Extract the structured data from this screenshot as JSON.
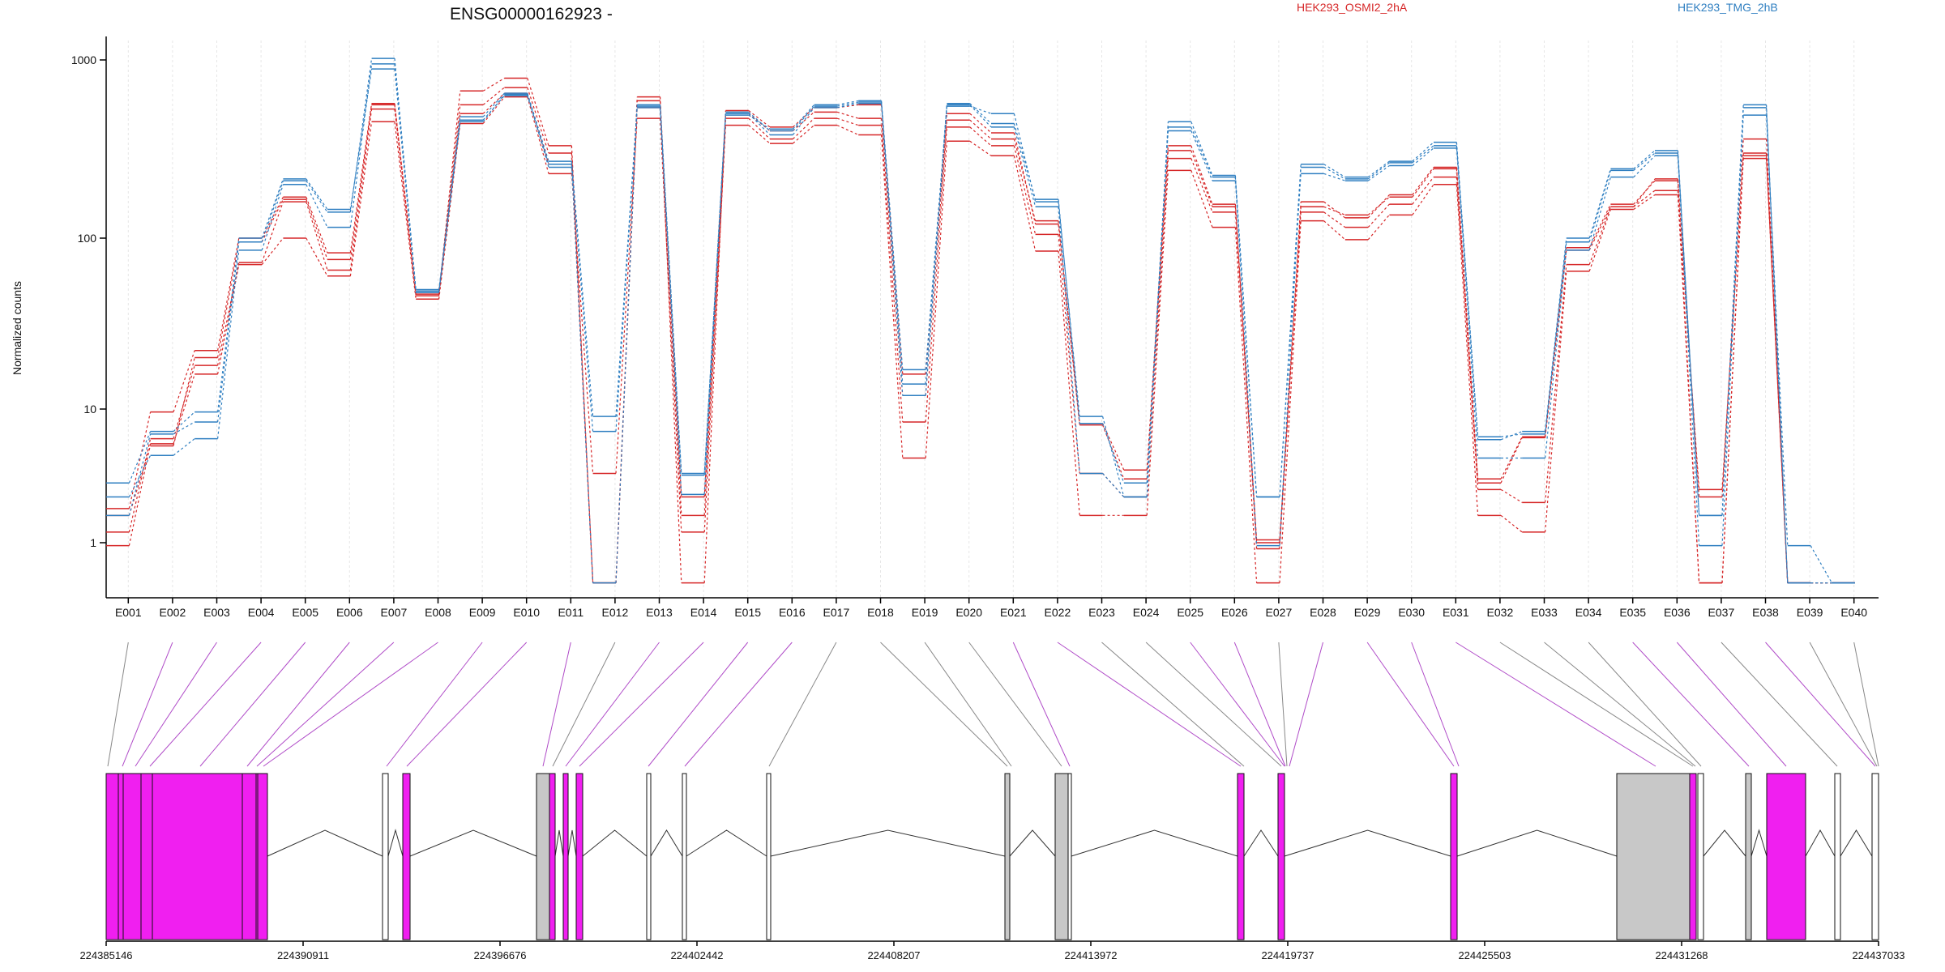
{
  "chart_data": {
    "type": "line",
    "title": "ENSG00000162923 -",
    "ylabel": "Normalized counts",
    "yscale": "log",
    "ylim": [
      0.5,
      1400
    ],
    "y_ticks": [
      {
        "value": 1,
        "label": "1"
      },
      {
        "value": 10,
        "label": "10"
      },
      {
        "value": 100,
        "label": "100"
      },
      {
        "value": 1000,
        "label": "1000"
      }
    ],
    "legend_placement": "top-right",
    "categories": [
      "E001",
      "E002",
      "E003",
      "E004",
      "E005",
      "E006",
      "E007",
      "E008",
      "E009",
      "E010",
      "E011",
      "E012",
      "E013",
      "E014",
      "E015",
      "E016",
      "E017",
      "E018",
      "E019",
      "E020",
      "E021",
      "E022",
      "E023",
      "E024",
      "E025",
      "E026",
      "E027",
      "E028",
      "E029",
      "E030",
      "E031",
      "E032",
      "E033",
      "E034",
      "E035",
      "E036",
      "E037",
      "E038",
      "E039",
      "E040"
    ],
    "condition_colors": {
      "HEK293_OSMI2_2hA": "#d62728",
      "HEK293_TMG_2hB": "#2f7fc1"
    },
    "series": [
      {
        "name": "HEK293_OSMI2_2hA",
        "color": "#d62728",
        "values": [
          0.95,
          5.5,
          16,
          70,
          100,
          60,
          450,
          44,
          440,
          620,
          230,
          3.3,
          470,
          1.2,
          430,
          340,
          430,
          380,
          4.3,
          350,
          290,
          84,
          1.6,
          1.6,
          240,
          115,
          0.5,
          125,
          98,
          135,
          200,
          1.6,
          1.2,
          64,
          145,
          175,
          0.5,
          280,
          0.5,
          0.5
        ]
      },
      {
        "name": "HEK293_OSMI2_2hA",
        "color": "#d62728",
        "values": [
          1.2,
          6,
          18,
          72,
          160,
          65,
          530,
          46,
          500,
          650,
          260,
          0.5,
          540,
          1.6,
          470,
          360,
          470,
          430,
          8,
          420,
          330,
          105,
          3.3,
          2.2,
          280,
          140,
          1.05,
          140,
          115,
          155,
          220,
          2.5,
          2,
          70,
          150,
          185,
          2.5,
          290,
          0.5,
          0.5
        ]
      },
      {
        "name": "HEK293_OSMI2_2hA",
        "color": "#d62728",
        "values": [
          1.8,
          9.5,
          22,
          100,
          170,
          82,
          570,
          48,
          560,
          700,
          300,
          0.5,
          590,
          2.2,
          500,
          400,
          510,
          470,
          12,
          460,
          360,
          125,
          7.8,
          3.5,
          330,
          155,
          1.0,
          160,
          130,
          175,
          250,
          3.0,
          6.2,
          85,
          150,
          215,
          2.2,
          360,
          0.5,
          0.5
        ]
      },
      {
        "name": "HEK293_OSMI2_2hA",
        "color": "#d62728",
        "values": [
          1.6,
          5.3,
          20,
          95,
          165,
          75,
          560,
          47,
          670,
          790,
          330,
          0.5,
          620,
          0.5,
          520,
          420,
          540,
          560,
          16,
          500,
          390,
          120,
          7.6,
          3.0,
          310,
          150,
          0.9,
          150,
          135,
          170,
          245,
          2.8,
          6.1,
          88,
          155,
          210,
          0.5,
          300,
          0.5,
          0.5
        ]
      },
      {
        "name": "HEK293_TMG_2hB",
        "color": "#2f7fc1",
        "values": [
          2.2,
          4.5,
          6,
          85,
          200,
          115,
          950,
          49,
          450,
          640,
          250,
          6.8,
          540,
          2.3,
          500,
          380,
          540,
          570,
          12,
          560,
          420,
          150,
          3.3,
          2.2,
          400,
          210,
          2.2,
          230,
          210,
          255,
          320,
          4.3,
          4.3,
          85,
          220,
          290,
          0.95,
          490,
          0.95,
          0.5
        ]
      },
      {
        "name": "HEK293_TMG_2hB",
        "color": "#2f7fc1",
        "values": [
          1.6,
          6.5,
          8,
          95,
          210,
          140,
          1020,
          50,
          480,
          650,
          270,
          8.8,
          550,
          3.2,
          510,
          400,
          550,
          580,
          14,
          570,
          440,
          165,
          7.8,
          2.8,
          420,
          220,
          0.95,
          250,
          215,
          265,
          330,
          6.2,
          6.5,
          95,
          240,
          300,
          1.6,
          540,
          0.5,
          0.5
        ]
      },
      {
        "name": "HEK293_TMG_2hB",
        "color": "#2f7fc1",
        "values": [
          2.8,
          6.8,
          9.5,
          100,
          215,
          145,
          890,
          48,
          460,
          630,
          260,
          0.5,
          560,
          3.3,
          490,
          410,
          560,
          590,
          17,
          550,
          500,
          160,
          8.8,
          2.2,
          450,
          225,
          2.2,
          260,
          220,
          270,
          345,
          5.9,
          6.8,
          100,
          245,
          310,
          1.6,
          560,
          0.5,
          0.5
        ]
      }
    ],
    "gene_model": {
      "x_ticks": [
        "224385146",
        "224390911",
        "224396676",
        "224402442",
        "224408207",
        "224413972",
        "224419737",
        "224425503",
        "224431268",
        "224437033"
      ]
    }
  }
}
